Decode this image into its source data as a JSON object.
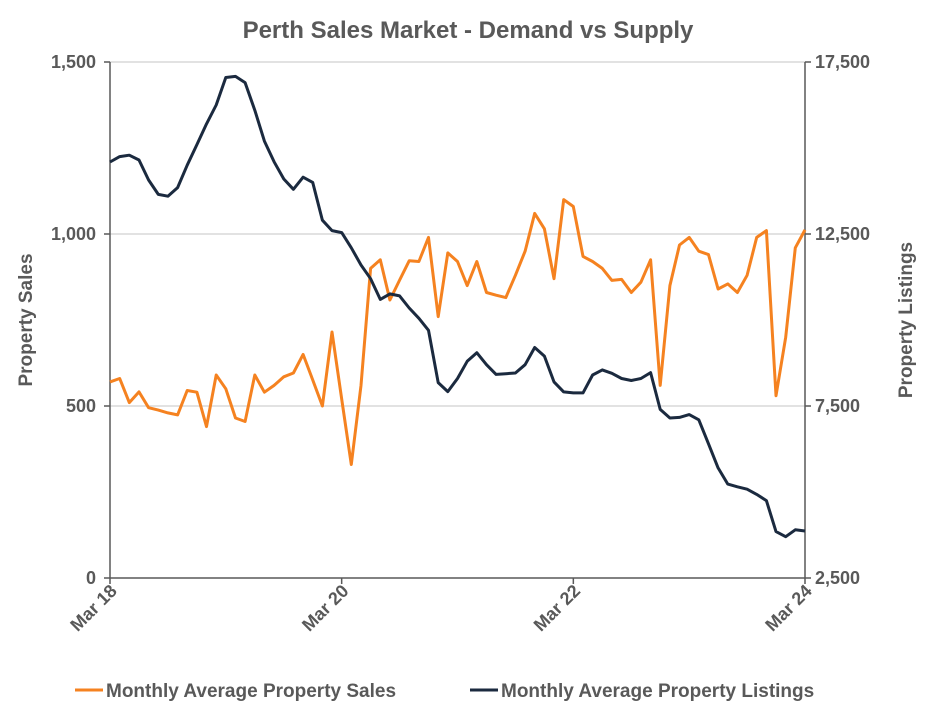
{
  "chart_data": {
    "type": "line",
    "title": "Perth Sales Market - Demand vs Supply",
    "xlabel": "",
    "ylabel_left": "Property Sales",
    "ylabel_right": "Property Listings",
    "ylim_left": [
      0,
      1500
    ],
    "ylim_right": [
      2500,
      17500
    ],
    "yticks_left": [
      "0",
      "500",
      "1,000",
      "1,500"
    ],
    "yticks_right": [
      "2,500",
      "7,500",
      "12,500",
      "17,500"
    ],
    "xticks": [
      {
        "x": "2018-03",
        "label": "Mar 18"
      },
      {
        "x": "2020-03",
        "label": "Mar 20"
      },
      {
        "x": "2022-03",
        "label": "Mar 22"
      },
      {
        "x": "2024-03",
        "label": "Mar 24"
      }
    ],
    "grid": "horizontal",
    "legend_position": "bottom",
    "x": [
      "2018-03",
      "2018-04",
      "2018-05",
      "2018-06",
      "2018-07",
      "2018-08",
      "2018-09",
      "2018-10",
      "2018-11",
      "2018-12",
      "2019-01",
      "2019-02",
      "2019-03",
      "2019-04",
      "2019-05",
      "2019-06",
      "2019-07",
      "2019-08",
      "2019-09",
      "2019-10",
      "2019-11",
      "2019-12",
      "2020-01",
      "2020-02",
      "2020-03",
      "2020-04",
      "2020-05",
      "2020-06",
      "2020-07",
      "2020-08",
      "2020-09",
      "2020-10",
      "2020-11",
      "2020-12",
      "2021-01",
      "2021-02",
      "2021-03",
      "2021-04",
      "2021-05",
      "2021-06",
      "2021-07",
      "2021-08",
      "2021-09",
      "2021-10",
      "2021-11",
      "2021-12",
      "2022-01",
      "2022-02",
      "2022-03",
      "2022-04",
      "2022-05",
      "2022-06",
      "2022-07",
      "2022-08",
      "2022-09",
      "2022-10",
      "2022-11",
      "2022-12",
      "2023-01",
      "2023-02",
      "2023-03",
      "2023-04",
      "2023-05",
      "2023-06",
      "2023-07",
      "2023-08",
      "2023-09",
      "2023-10",
      "2023-11",
      "2023-12",
      "2024-01",
      "2024-02",
      "2024-03"
    ],
    "series": [
      {
        "name": "Monthly Average Property Sales",
        "axis": "left",
        "color": "#F58220",
        "values": [
          570,
          580,
          510,
          541,
          495,
          488,
          480,
          474,
          545,
          540,
          440,
          590,
          550,
          465,
          455,
          590,
          540,
          560,
          585,
          596,
          650,
          576,
          500,
          715,
          520,
          330,
          560,
          900,
          925,
          808,
          866,
          922,
          920,
          990,
          760,
          945,
          920,
          850,
          920,
          830,
          822,
          815,
          880,
          950,
          1060,
          1015,
          870,
          1100,
          1080,
          935,
          920,
          900,
          865,
          868,
          830,
          860,
          925,
          560,
          850,
          968,
          990,
          950,
          940,
          840,
          855,
          830,
          880,
          990,
          1010,
          530,
          700,
          960,
          1012
        ]
      },
      {
        "name": "Monthly Average Property Listings",
        "axis": "right",
        "color": "#1B2A3F",
        "values": [
          14593,
          14750,
          14790,
          14650,
          14070,
          13650,
          13600,
          13850,
          14500,
          15100,
          15700,
          16250,
          17050,
          17080,
          16900,
          16100,
          15200,
          14600,
          14100,
          13800,
          14150,
          14000,
          12900,
          12600,
          12540,
          12100,
          11600,
          11200,
          10600,
          10760,
          10700,
          10350,
          10050,
          9700,
          8180,
          7920,
          8300,
          8800,
          9050,
          8700,
          8420,
          8440,
          8460,
          8700,
          9200,
          8950,
          8200,
          7910,
          7880,
          7880,
          8400,
          8550,
          8450,
          8300,
          8240,
          8300,
          8470,
          7400,
          7150,
          7170,
          7250,
          7100,
          6400,
          5700,
          5230,
          5150,
          5080,
          4930,
          4750,
          3850,
          3700,
          3900,
          3866
        ]
      }
    ]
  }
}
